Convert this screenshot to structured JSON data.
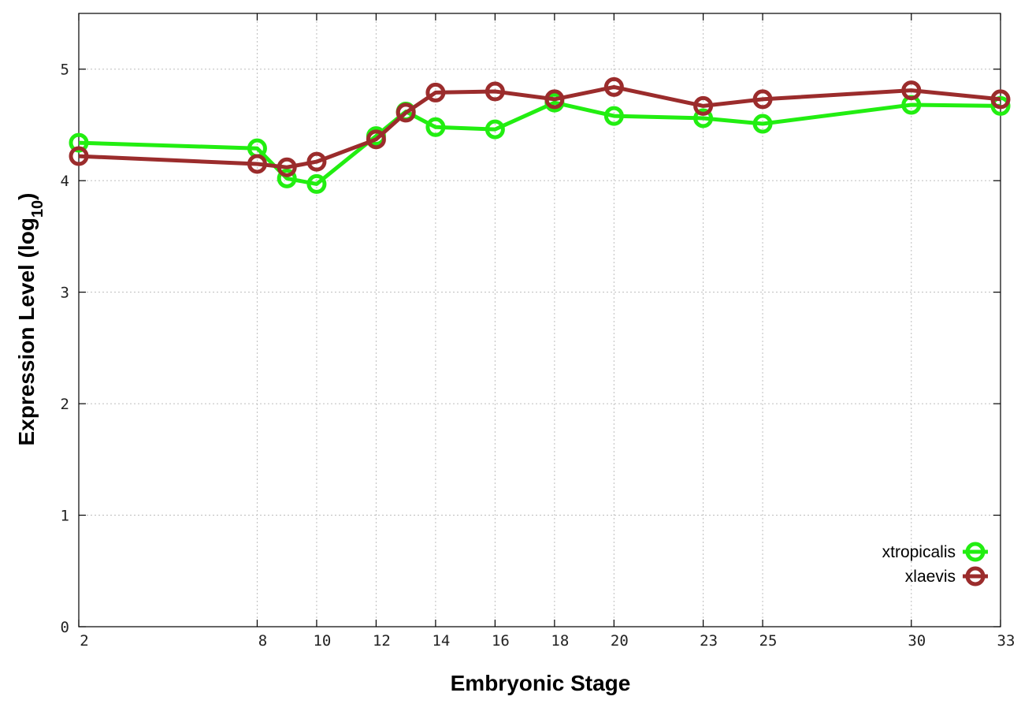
{
  "chart_data": {
    "type": "line",
    "xlabel": "Embryonic Stage",
    "ylabel_main": "Expression Level (log",
    "ylabel_sub": "10",
    "ylabel_close": ")",
    "x": [
      2,
      8,
      9,
      10,
      12,
      13,
      14,
      16,
      18,
      20,
      23,
      25,
      30,
      33
    ],
    "x_ticks": [
      2,
      8,
      10,
      12,
      14,
      16,
      18,
      20,
      23,
      25,
      30,
      33
    ],
    "y_ticks": [
      0,
      1,
      2,
      3,
      4,
      5
    ],
    "xlim": [
      2,
      33
    ],
    "ylim": [
      0,
      5.5
    ],
    "grid": true,
    "legend_position": "bottom-right",
    "series": [
      {
        "name": "xtropicalis",
        "color": "#22ee11",
        "values": [
          4.34,
          4.29,
          4.02,
          3.97,
          4.4,
          4.62,
          4.48,
          4.46,
          4.7,
          4.58,
          4.56,
          4.51,
          4.68,
          4.67
        ]
      },
      {
        "name": "xlaevis",
        "color": "#9b2c2c",
        "values": [
          4.22,
          4.15,
          4.12,
          4.17,
          4.37,
          4.61,
          4.79,
          4.8,
          4.73,
          4.84,
          4.67,
          4.73,
          4.81,
          4.73
        ]
      }
    ]
  }
}
